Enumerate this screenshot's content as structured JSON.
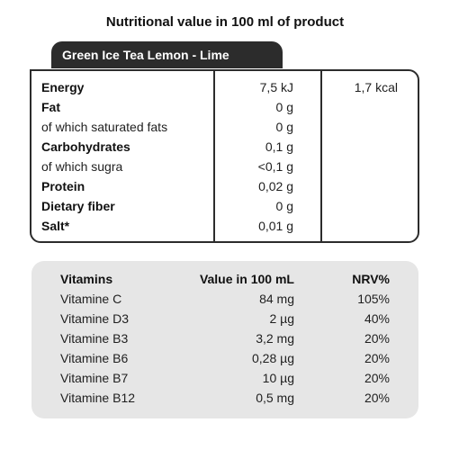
{
  "title": "Nutritional value in 100 ml of product",
  "product_name": "Green Ice Tea Lemon - Lime",
  "nutrition": {
    "rows": [
      {
        "name": "Energy",
        "bold": true,
        "value": "7,5 kJ",
        "kcal": "1,7 kcal"
      },
      {
        "name": "Fat",
        "bold": true,
        "value": "0 g",
        "kcal": ""
      },
      {
        "name": "of which saturated fats",
        "bold": false,
        "value": "0 g",
        "kcal": ""
      },
      {
        "name": "Carbohydrates",
        "bold": true,
        "value": "0,1 g",
        "kcal": ""
      },
      {
        "name": "of which sugra",
        "bold": false,
        "value": "<0,1 g",
        "kcal": ""
      },
      {
        "name": "Protein",
        "bold": true,
        "value": "0,02 g",
        "kcal": ""
      },
      {
        "name": "Dietary fiber",
        "bold": true,
        "value": "0 g",
        "kcal": ""
      },
      {
        "name": "Salt*",
        "bold": true,
        "value": "0,01 g",
        "kcal": ""
      }
    ]
  },
  "vitamins": {
    "headers": {
      "name": "Vitamins",
      "value": "Value in 100 mL",
      "nrv": "NRV%"
    },
    "rows": [
      {
        "name": "Vitamine C",
        "value": "84 mg",
        "nrv": "105%"
      },
      {
        "name": "Vitamine D3",
        "value": "2 µg",
        "nrv": "40%"
      },
      {
        "name": "Vitamine B3",
        "value": "3,2 mg",
        "nrv": "20%"
      },
      {
        "name": "Vitamine B6",
        "value": "0,28 µg",
        "nrv": "20%"
      },
      {
        "name": "Vitamine B7",
        "value": "10 µg",
        "nrv": "20%"
      },
      {
        "name": "Vitamine B12",
        "value": "0,5 mg",
        "nrv": "20%"
      }
    ]
  }
}
